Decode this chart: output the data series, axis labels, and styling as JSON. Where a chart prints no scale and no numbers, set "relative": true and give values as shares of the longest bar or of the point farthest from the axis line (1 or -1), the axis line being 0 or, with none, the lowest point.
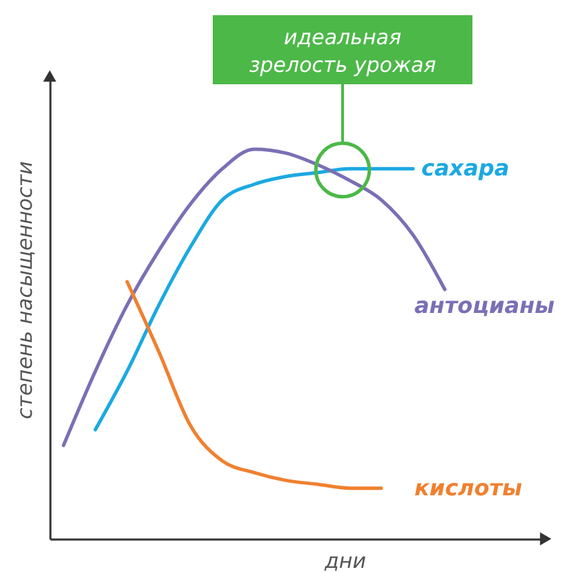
{
  "chart_data": {
    "type": "line",
    "relative": true,
    "xlabel": "дни",
    "ylabel": "степень насыщенности",
    "annotations": [
      "идеальная зрелость урожая"
    ],
    "categories": [
      null,
      null,
      null,
      null,
      null,
      null,
      null,
      null,
      null,
      null,
      null,
      null,
      null
    ],
    "series": [
      {
        "name": "сахара",
        "color": "#1ba9e1",
        "values": [
          null,
          0.28,
          0.43,
          0.6,
          0.75,
          0.87,
          0.91,
          0.93,
          0.94,
          0.95,
          0.95,
          0.95,
          null
        ]
      },
      {
        "name": "антоцианы",
        "color": "#7b6fb5",
        "values": [
          0.24,
          0.43,
          0.6,
          0.74,
          0.86,
          0.95,
          1.0,
          0.99,
          0.96,
          0.92,
          0.87,
          0.78,
          0.64
        ]
      },
      {
        "name": "кислоты",
        "color": "#f08030",
        "values": [
          null,
          null,
          0.66,
          0.48,
          0.29,
          0.2,
          0.17,
          0.15,
          0.14,
          0.13,
          0.13,
          null,
          null
        ]
      }
    ]
  }
}
